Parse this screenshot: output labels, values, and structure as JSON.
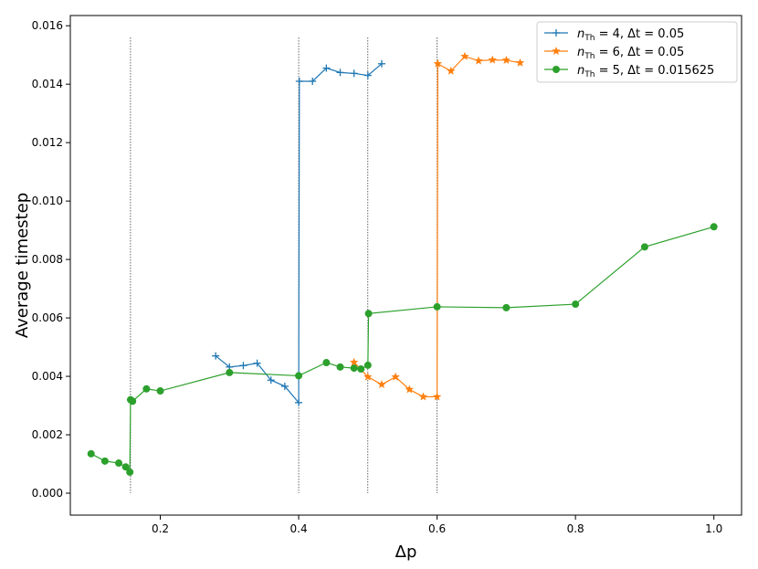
{
  "chart_data": {
    "type": "line",
    "title": "",
    "xlabel": "Δp",
    "ylabel": "Average timestep",
    "xlim": [
      0.07,
      1.04
    ],
    "ylim": [
      -0.00075,
      0.01635
    ],
    "xticks": [
      0.2,
      0.4,
      0.6,
      0.8,
      1.0
    ],
    "xtick_labels": [
      "0.2",
      "0.4",
      "0.6",
      "0.8",
      "1.0"
    ],
    "yticks": [
      0.0,
      0.002,
      0.004,
      0.006,
      0.008,
      0.01,
      0.012,
      0.014,
      0.016
    ],
    "ytick_labels": [
      "0.000",
      "0.002",
      "0.004",
      "0.006",
      "0.008",
      "0.010",
      "0.012",
      "0.014",
      "0.016"
    ],
    "grid": false,
    "legend_position": "top-right",
    "vertical_lines": {
      "x": [
        0.157,
        0.4,
        0.5,
        0.6
      ],
      "y_range": [
        0.0,
        0.0156
      ],
      "color": "#000000",
      "style": "dotted"
    },
    "series": [
      {
        "name": "n_Th = 4,    Δt = 0.05",
        "legend_main_1": "n",
        "legend_sub": "Th",
        "legend_main_2": " = 4,    Δt = 0.05",
        "color": "#1f77b4",
        "marker": "plus",
        "x": [
          0.28,
          0.3,
          0.32,
          0.34,
          0.36,
          0.38,
          0.4,
          0.401,
          0.42,
          0.44,
          0.46,
          0.48,
          0.5,
          0.52
        ],
        "y": [
          0.0047,
          0.00432,
          0.00437,
          0.00445,
          0.00387,
          0.00366,
          0.0031,
          0.0141,
          0.0141,
          0.01455,
          0.0144,
          0.01437,
          0.0143,
          0.0147
        ]
      },
      {
        "name": "n_Th = 6,    Δt = 0.05",
        "legend_main_1": "n",
        "legend_sub": "Th",
        "legend_main_2": " = 6,    Δt = 0.05",
        "color": "#ff7f0e",
        "marker": "star",
        "x": [
          0.48,
          0.5,
          0.52,
          0.54,
          0.56,
          0.58,
          0.6,
          0.601,
          0.62,
          0.64,
          0.66,
          0.68,
          0.7,
          0.72
        ],
        "y": [
          0.00448,
          0.00398,
          0.00372,
          0.00398,
          0.00355,
          0.0033,
          0.0033,
          0.0147,
          0.01445,
          0.01495,
          0.0148,
          0.01483,
          0.01482,
          0.01473
        ]
      },
      {
        "name": "n_Th = 5,    Δt = 0.015625",
        "legend_main_1": "n",
        "legend_sub": "Th",
        "legend_main_2": " = 5,    Δt = 0.015625",
        "color": "#2ca02c",
        "marker": "circle",
        "x": [
          0.1,
          0.12,
          0.14,
          0.15,
          0.156,
          0.157,
          0.16,
          0.18,
          0.2,
          0.3,
          0.4,
          0.44,
          0.46,
          0.48,
          0.49,
          0.5,
          0.501,
          0.6,
          0.7,
          0.8,
          0.9,
          1.0
        ],
        "y": [
          0.00135,
          0.0011,
          0.00103,
          0.0009,
          0.00072,
          0.0032,
          0.00315,
          0.00357,
          0.0035,
          0.00413,
          0.00402,
          0.00447,
          0.00432,
          0.00428,
          0.00425,
          0.00438,
          0.00615,
          0.00638,
          0.00635,
          0.00647,
          0.00843,
          0.00912
        ]
      }
    ]
  }
}
